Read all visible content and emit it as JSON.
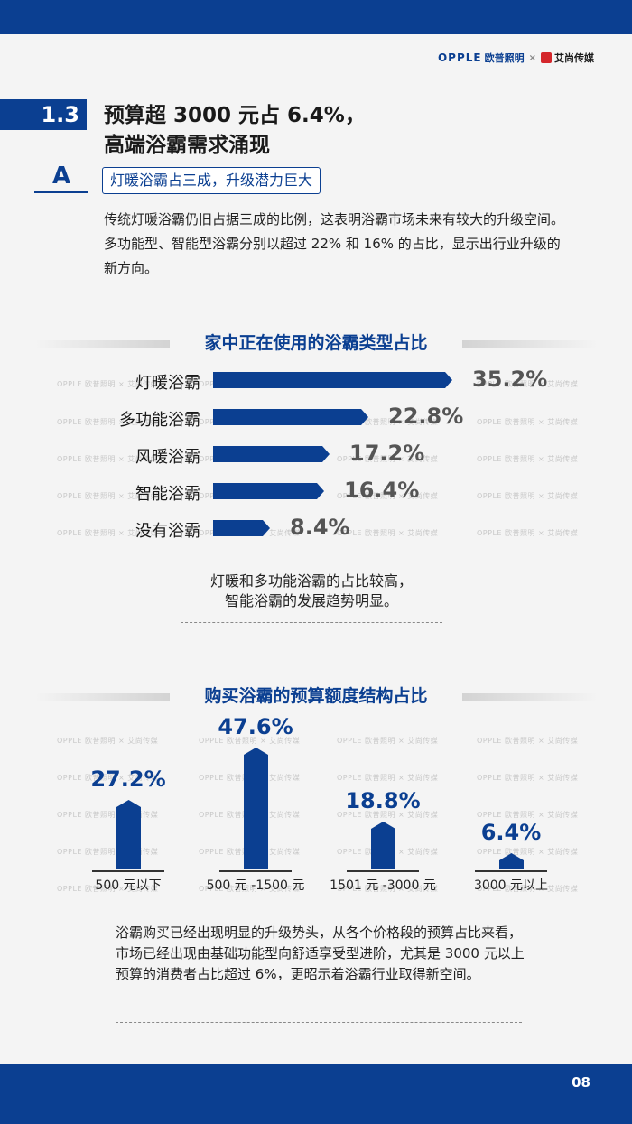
{
  "header": {
    "logo_brand": "OPPLE",
    "logo_brand_cn": "欧普照明",
    "logo_sep": "×",
    "logo_partner": "艾尚传媒"
  },
  "section": {
    "number": "1.3",
    "title_line1": "预算超 3000 元占 6.4%，",
    "title_line2": "高端浴霸需求涌现"
  },
  "subsection": {
    "label": "A",
    "title": "灯暖浴霸占三成，升级潜力巨大"
  },
  "intro": "传统灯暖浴霸仍旧占据三成的比例，这表明浴霸市场未来有较大的升级空间。多功能型、智能型浴霸分别以超过 22% 和 16% 的占比，显示出行业升级的新方向。",
  "watermark": "OPPLE 欧普照明 × 艾尚传媒",
  "chart_data": [
    {
      "type": "bar",
      "orientation": "horizontal",
      "title": "家中正在使用的浴霸类型占比",
      "categories": [
        "灯暖浴霸",
        "多功能浴霸",
        "风暖浴霸",
        "智能浴霸",
        "没有浴霸"
      ],
      "values": [
        35.2,
        22.8,
        17.2,
        16.4,
        8.4
      ],
      "value_labels": [
        "35.2%",
        "22.8%",
        "17.2%",
        "16.4%",
        "8.4%"
      ],
      "color": "#0b3f91"
    },
    {
      "type": "bar",
      "orientation": "vertical",
      "title": "购买浴霸的预算额度结构占比",
      "categories": [
        "500 元以下",
        "500 元 -1500 元",
        "1501 元 -3000 元",
        "3000 元以上"
      ],
      "values": [
        27.2,
        47.6,
        18.8,
        6.4
      ],
      "value_labels": [
        "27.2%",
        "47.6%",
        "18.8%",
        "6.4%"
      ],
      "color": "#0b3f91"
    }
  ],
  "chart1_note": [
    "灯暖和多功能浴霸的占比较高，",
    "智能浴霸的发展趋势明显。"
  ],
  "footer_text": "浴霸购买已经出现明显的升级势头，从各个价格段的预算占比来看，市场已经出现由基础功能型向舒适享受型进阶，尤其是 3000 元以上预算的消费者占比超过 6%，更昭示着浴霸行业取得新空间。",
  "page_number": "08"
}
